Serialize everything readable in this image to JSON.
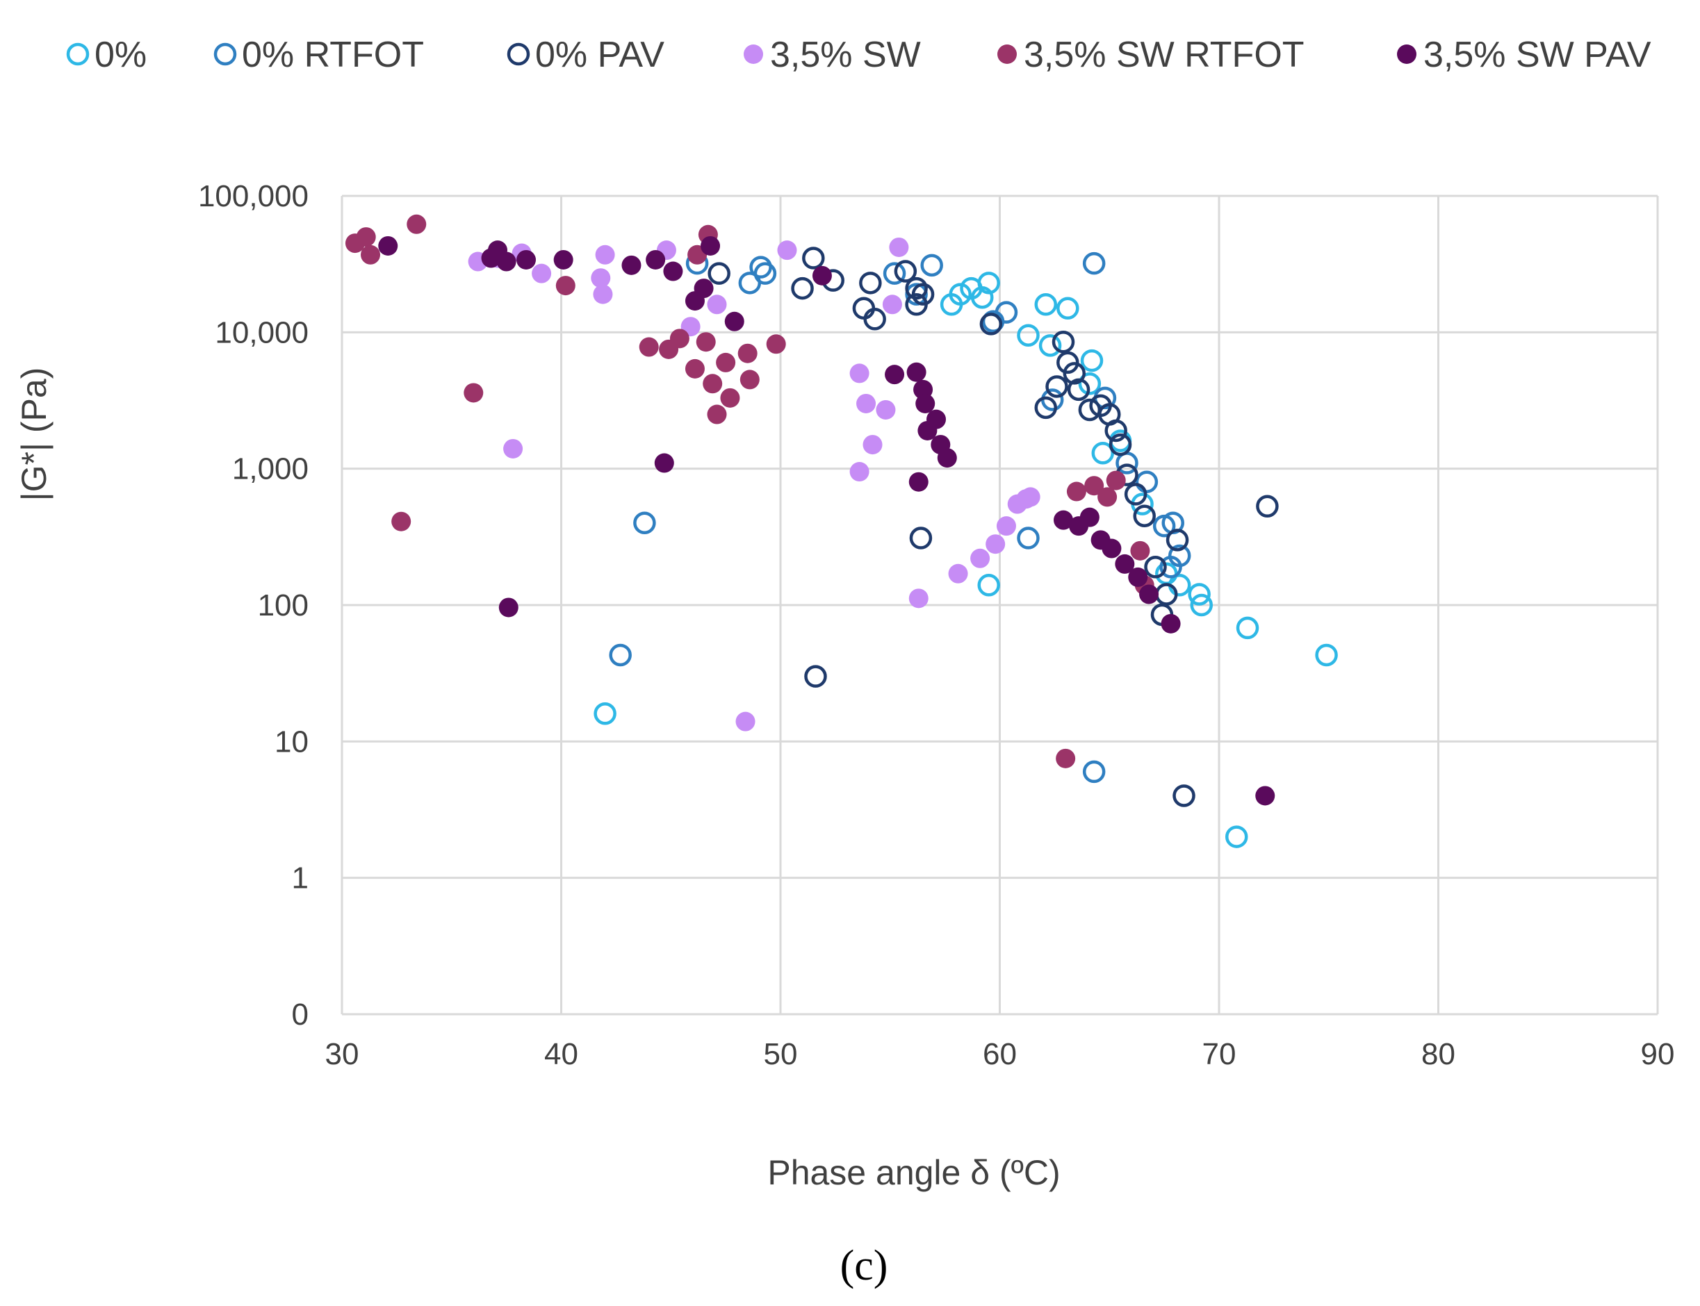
{
  "chart_data": {
    "type": "scatter",
    "title": "",
    "xlabel": "Phase angle δ (ºC)",
    "ylabel": "|G*| (Pa)",
    "caption": "(c)",
    "xlim": [
      30,
      90
    ],
    "x_ticks": [
      30,
      40,
      50,
      60,
      70,
      80,
      90
    ],
    "y_scale": "log",
    "y_ticks": [
      0,
      1,
      10,
      100,
      1000,
      10000,
      100000
    ],
    "y_tick_labels": [
      "0",
      "1",
      "10",
      "100",
      "1,000",
      "10,000",
      "100,000"
    ],
    "grid": true,
    "legend_position": "top",
    "series": [
      {
        "name": "0%",
        "color": "#2eb8e6",
        "marker": "open-circle",
        "points": [
          [
            42,
            16
          ],
          [
            57.8,
            16000
          ],
          [
            58.2,
            19000
          ],
          [
            58.7,
            21000
          ],
          [
            59.2,
            18000
          ],
          [
            59.5,
            23000
          ],
          [
            61.3,
            9500
          ],
          [
            62.1,
            16000
          ],
          [
            63.1,
            15000
          ],
          [
            62.3,
            8000
          ],
          [
            64.2,
            6200
          ],
          [
            64.1,
            4200
          ],
          [
            64.7,
            1300
          ],
          [
            65.5,
            1600
          ],
          [
            66.5,
            550
          ],
          [
            67.6,
            170
          ],
          [
            68.2,
            140
          ],
          [
            69.2,
            100
          ],
          [
            69.1,
            120
          ],
          [
            71.3,
            68
          ],
          [
            74.9,
            43
          ],
          [
            70.8,
            2
          ],
          [
            59.5,
            140
          ]
        ]
      },
      {
        "name": "0% RTFOT",
        "color": "#2f7fc1",
        "marker": "open-circle",
        "points": [
          [
            42.7,
            43
          ],
          [
            43.8,
            400
          ],
          [
            46.2,
            32000
          ],
          [
            48.6,
            23000
          ],
          [
            49.1,
            30000
          ],
          [
            49.3,
            27000
          ],
          [
            55.2,
            27000
          ],
          [
            56.9,
            31000
          ],
          [
            56.2,
            19000
          ],
          [
            59.7,
            12000
          ],
          [
            60.3,
            14000
          ],
          [
            62.4,
            3200
          ],
          [
            64.3,
            32000
          ],
          [
            64.3,
            6
          ],
          [
            64.8,
            3300
          ],
          [
            65.8,
            1100
          ],
          [
            66.7,
            800
          ],
          [
            67.5,
            380
          ],
          [
            67.9,
            400
          ],
          [
            68.2,
            230
          ],
          [
            67.8,
            190
          ],
          [
            61.3,
            310
          ]
        ]
      },
      {
        "name": "0% PAV",
        "color": "#1f3a6b",
        "marker": "open-circle",
        "points": [
          [
            47.2,
            27000
          ],
          [
            51,
            21000
          ],
          [
            51.5,
            35000
          ],
          [
            52.4,
            24000
          ],
          [
            53.8,
            15000
          ],
          [
            54.1,
            23000
          ],
          [
            54.3,
            12500
          ],
          [
            55.7,
            28000
          ],
          [
            56.2,
            21000
          ],
          [
            56.2,
            16000
          ],
          [
            56.5,
            19000
          ],
          [
            59.6,
            11500
          ],
          [
            62.1,
            2800
          ],
          [
            62.6,
            4000
          ],
          [
            62.9,
            8500
          ],
          [
            63.1,
            6000
          ],
          [
            63.4,
            5000
          ],
          [
            63.6,
            3800
          ],
          [
            64.1,
            2700
          ],
          [
            64.6,
            2900
          ],
          [
            65,
            2500
          ],
          [
            65.3,
            1900
          ],
          [
            65.5,
            1500
          ],
          [
            65.8,
            900
          ],
          [
            66.2,
            650
          ],
          [
            66.6,
            450
          ],
          [
            67.1,
            190
          ],
          [
            67.6,
            120
          ],
          [
            67.4,
            85
          ],
          [
            68.1,
            300
          ],
          [
            72.2,
            530
          ],
          [
            68.4,
            4
          ],
          [
            56.4,
            310
          ],
          [
            51.6,
            30
          ]
        ]
      },
      {
        "name": "3,5% SW",
        "color": "#c68cf5",
        "marker": "filled-circle",
        "points": [
          [
            36.2,
            33000
          ],
          [
            37.1,
            35000
          ],
          [
            38.2,
            38000
          ],
          [
            39.1,
            27000
          ],
          [
            41.8,
            25000
          ],
          [
            41.9,
            19000
          ],
          [
            42,
            37000
          ],
          [
            44.8,
            40000
          ],
          [
            45.9,
            11000
          ],
          [
            47.1,
            16000
          ],
          [
            50.3,
            40000
          ],
          [
            55.4,
            42000
          ],
          [
            55.1,
            16000
          ],
          [
            37.8,
            1400
          ],
          [
            48.4,
            14
          ],
          [
            53.6,
            5000
          ],
          [
            53.9,
            3000
          ],
          [
            54.2,
            1500
          ],
          [
            54.8,
            2700
          ],
          [
            53.6,
            950
          ],
          [
            56.3,
            112
          ],
          [
            58.1,
            170
          ],
          [
            59.1,
            220
          ],
          [
            59.8,
            280
          ],
          [
            60.3,
            380
          ],
          [
            60.8,
            550
          ],
          [
            61.2,
            600
          ],
          [
            61.4,
            620
          ]
        ]
      },
      {
        "name": "3,5% SW RTFOT",
        "color": "#9b3468",
        "marker": "filled-circle",
        "points": [
          [
            30.6,
            45000
          ],
          [
            31.1,
            50000
          ],
          [
            31.3,
            37000
          ],
          [
            33.4,
            62000
          ],
          [
            36,
            3600
          ],
          [
            32.7,
            410
          ],
          [
            40.2,
            22000
          ],
          [
            44,
            7800
          ],
          [
            44.9,
            7500
          ],
          [
            45.4,
            9000
          ],
          [
            46.1,
            5400
          ],
          [
            46.6,
            8500
          ],
          [
            46.9,
            4200
          ],
          [
            47.1,
            2500
          ],
          [
            47.5,
            6000
          ],
          [
            47.7,
            3300
          ],
          [
            48.5,
            7000
          ],
          [
            48.6,
            4500
          ],
          [
            49.8,
            8200
          ],
          [
            46.2,
            37000
          ],
          [
            46.7,
            52000
          ],
          [
            63,
            7.5
          ],
          [
            63.5,
            680
          ],
          [
            64.3,
            750
          ],
          [
            64.9,
            620
          ],
          [
            65.3,
            820
          ],
          [
            66.4,
            250
          ],
          [
            66.6,
            140
          ]
        ]
      },
      {
        "name": "3,5% SW PAV",
        "color": "#5a0a5c",
        "marker": "filled-circle",
        "points": [
          [
            32.1,
            43000
          ],
          [
            36.8,
            35000
          ],
          [
            37.1,
            40000
          ],
          [
            37.5,
            33000
          ],
          [
            38.4,
            34000
          ],
          [
            40.1,
            34000
          ],
          [
            43.2,
            31000
          ],
          [
            44.3,
            34000
          ],
          [
            44.7,
            1100
          ],
          [
            45.1,
            28000
          ],
          [
            46.1,
            17000
          ],
          [
            46.5,
            21000
          ],
          [
            46.8,
            43000
          ],
          [
            47.9,
            12000
          ],
          [
            51.9,
            26000
          ],
          [
            37.6,
            96
          ],
          [
            55.2,
            4900
          ],
          [
            56.2,
            5100
          ],
          [
            56.5,
            3800
          ],
          [
            56.6,
            3000
          ],
          [
            57.1,
            2300
          ],
          [
            56.7,
            1900
          ],
          [
            57.3,
            1500
          ],
          [
            57.6,
            1200
          ],
          [
            56.3,
            800
          ],
          [
            62.9,
            420
          ],
          [
            63.6,
            380
          ],
          [
            64.1,
            440
          ],
          [
            64.6,
            300
          ],
          [
            65.1,
            260
          ],
          [
            65.7,
            200
          ],
          [
            66.3,
            160
          ],
          [
            66.8,
            120
          ],
          [
            67.8,
            73
          ],
          [
            72.1,
            4
          ]
        ]
      }
    ]
  }
}
